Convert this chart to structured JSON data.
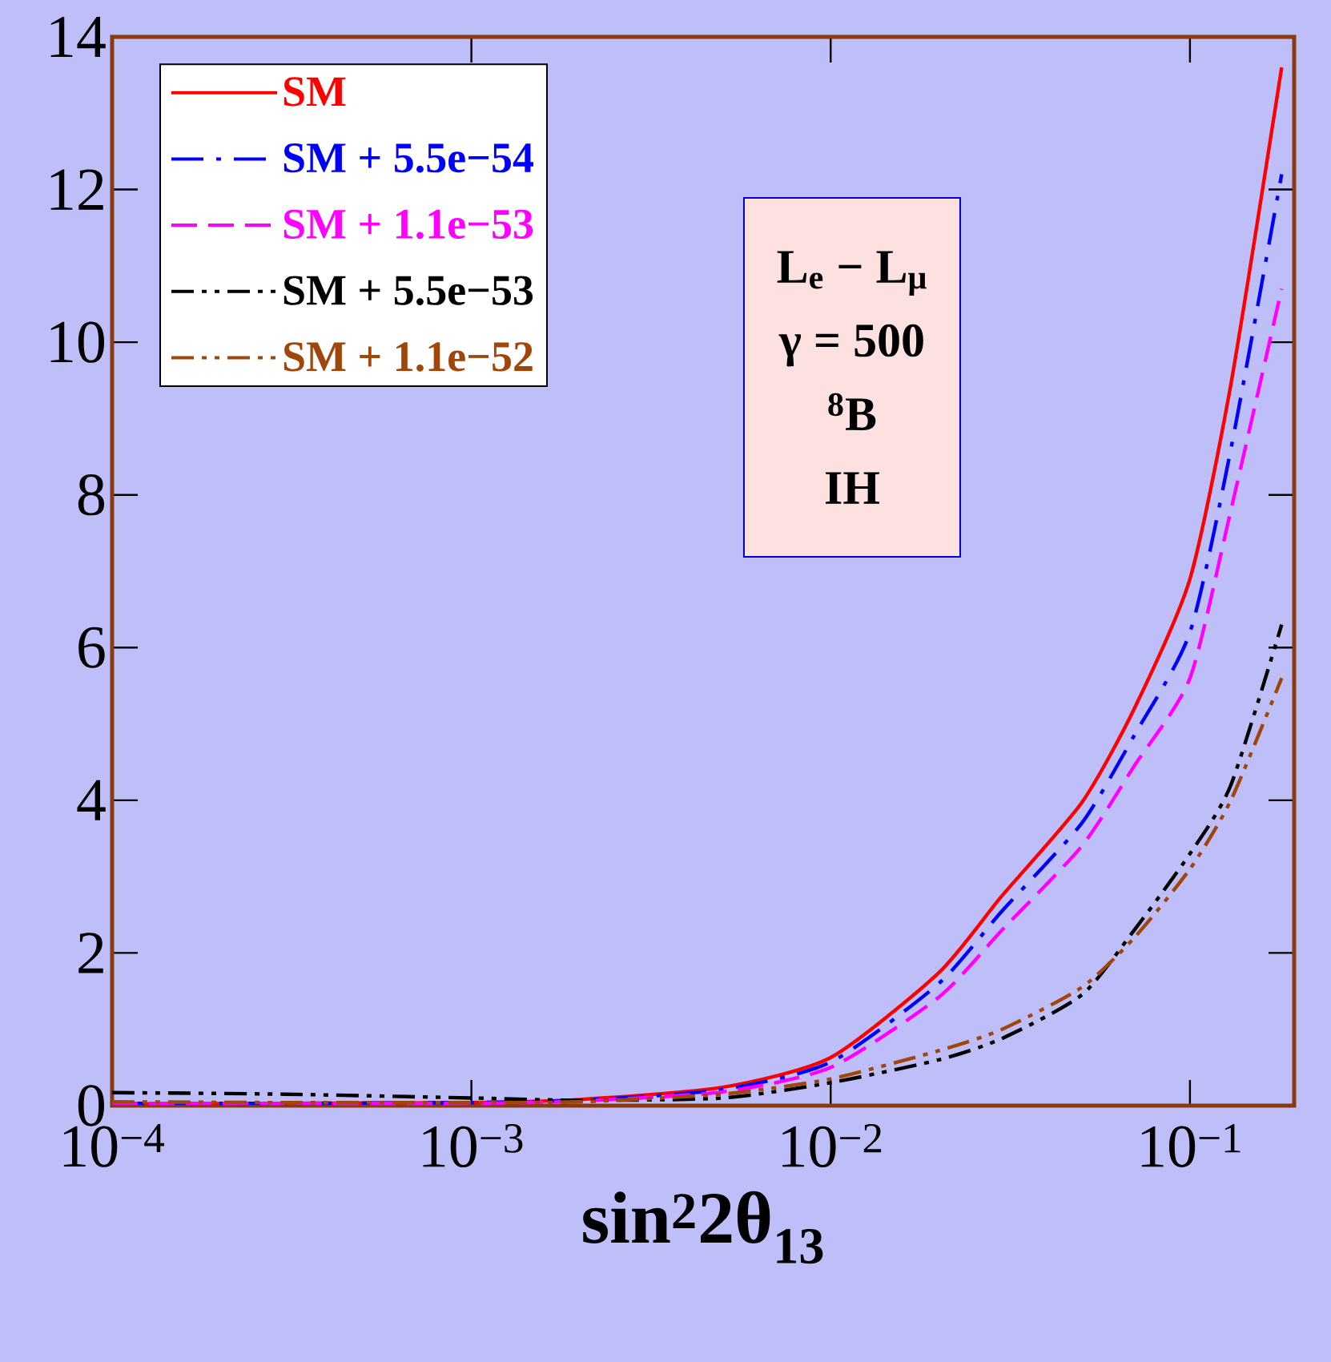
{
  "chart_data": {
    "type": "line",
    "xlabel": "sin$^{2}$2θ$_{13}$",
    "x": [
      0.0001,
      0.0003,
      0.001,
      0.002,
      0.005,
      0.01,
      0.02,
      0.03,
      0.05,
      0.07,
      0.1,
      0.13,
      0.18
    ],
    "series": [
      {
        "name": "SM",
        "color": "#ff0000",
        "line_style": "solid",
        "values": [
          0.02,
          0.03,
          0.04,
          0.08,
          0.24,
          0.63,
          1.74,
          2.75,
          3.97,
          5.2,
          6.9,
          9.45,
          13.6
        ]
      },
      {
        "name": "SM + 5.5e−54",
        "color": "#0000ff",
        "line_style": "dashdot",
        "values": [
          0.03,
          0.03,
          0.04,
          0.07,
          0.21,
          0.57,
          1.6,
          2.55,
          3.7,
          4.85,
          6.2,
          8.6,
          12.2
        ]
      },
      {
        "name": "SM + 1.1e−53",
        "color": "#ff00ff",
        "line_style": "dashed",
        "values": [
          0.03,
          0.03,
          0.03,
          0.06,
          0.18,
          0.5,
          1.42,
          2.3,
          3.4,
          4.45,
          5.6,
          7.8,
          10.7
        ]
      },
      {
        "name": "SM + 5.5e−53",
        "color": "#000000",
        "line_style": "dashdotdot",
        "values": [
          0.17,
          0.15,
          0.1,
          0.07,
          0.1,
          0.3,
          0.6,
          0.88,
          1.45,
          2.3,
          3.3,
          4.2,
          6.3
        ]
      },
      {
        "name": "SM + 1.1e−52",
        "color": "#a0460a",
        "line_style": "dashdotdot",
        "values": [
          0.05,
          0.04,
          0.04,
          0.05,
          0.15,
          0.35,
          0.72,
          1.0,
          1.55,
          2.2,
          3.1,
          4.0,
          5.6
        ]
      }
    ],
    "log": "x",
    "xlim": [
      0.0001,
      0.195
    ],
    "xticks": [
      {
        "value": 0.0001,
        "label": "10$^{−4}$"
      },
      {
        "value": 0.001,
        "label": "10$^{−3}$"
      },
      {
        "value": 0.01,
        "label": "10$^{−2}$"
      },
      {
        "value": 0.1,
        "label": "10$^{−1}$"
      }
    ],
    "ylim": [
      0,
      14
    ],
    "yticks": [
      0,
      2,
      4,
      6,
      8,
      10,
      12,
      14
    ],
    "grid": false,
    "legend": "top left",
    "annotations": [
      "L$_{e}$ − L$_{μ}$",
      "γ = 500",
      "$^{8}$B",
      "IH"
    ]
  }
}
